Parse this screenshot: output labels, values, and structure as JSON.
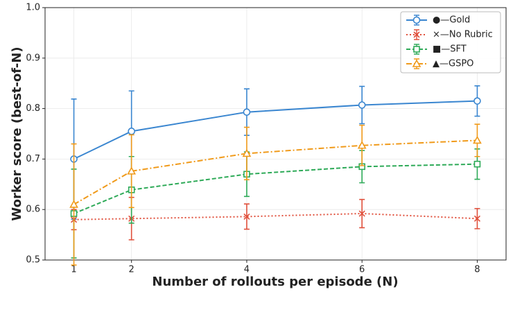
{
  "chart_data": {
    "type": "line",
    "xlabel": "Number of rollouts per episode (N)",
    "ylabel": "Worker score (best-of-N)",
    "x": [
      1,
      2,
      4,
      6,
      8
    ],
    "xlim": [
      0.5,
      8.5
    ],
    "xticks": [
      1,
      2,
      4,
      6,
      8
    ],
    "ylim": [
      0.5,
      1.0
    ],
    "yticks": [
      0.5,
      0.6,
      0.7,
      0.8,
      0.9,
      {
        "value": 1.0,
        "label": "1.0"
      }
    ],
    "grid": true,
    "legend": "upper right",
    "series": [
      {
        "name": "●—Gold",
        "color": "#3a86d0",
        "marker": "circle",
        "linestyle": "solid",
        "values": [
          0.7,
          0.755,
          0.793,
          0.807,
          0.815
        ],
        "errors": [
          0.119,
          0.08,
          0.046,
          0.037,
          0.03
        ]
      },
      {
        "name": "×—No Rubric",
        "color": "#e0503c",
        "marker": "x",
        "linestyle": "dotted",
        "values": [
          0.58,
          0.582,
          0.586,
          0.592,
          0.582
        ],
        "errors": [
          0.02,
          0.042,
          0.025,
          0.028,
          0.02
        ]
      },
      {
        "name": "■—SFT",
        "color": "#2eaa58",
        "marker": "square",
        "linestyle": "dashed",
        "values": [
          0.592,
          0.639,
          0.67,
          0.685,
          0.69
        ],
        "errors": [
          0.088,
          0.066,
          0.044,
          0.032,
          0.03
        ]
      },
      {
        "name": "▲—GSPO",
        "color": "#f09a1a",
        "marker": "triangle",
        "linestyle": "dashdot",
        "values": [
          0.61,
          0.676,
          0.711,
          0.727,
          0.737
        ],
        "errors": [
          0.12,
          0.072,
          0.052,
          0.04,
          0.032
        ]
      }
    ]
  }
}
